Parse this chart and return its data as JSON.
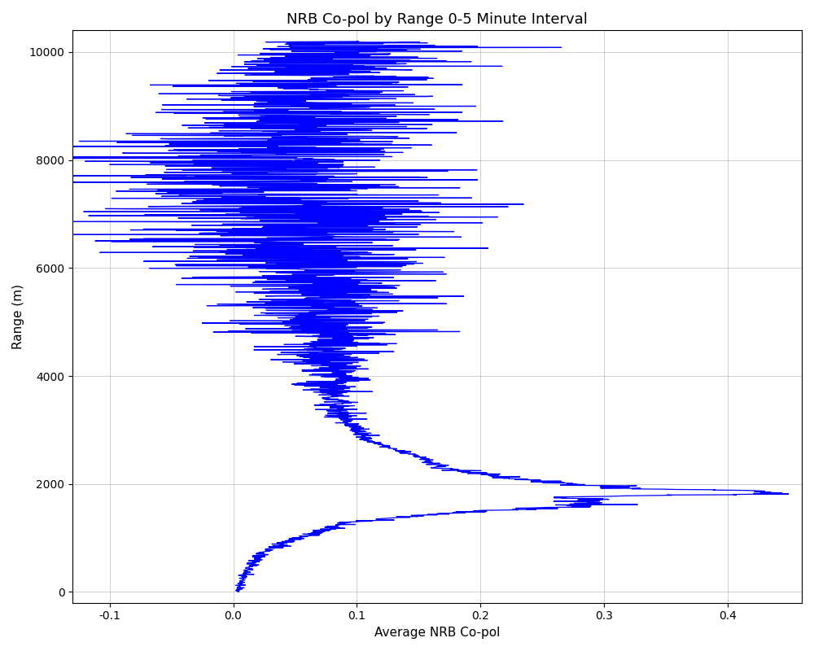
{
  "title": "NRB Co-pol by Range 0-5 Minute Interval",
  "xlabel": "Average NRB Co-pol",
  "ylabel": "Range (m)",
  "xlim": [
    -0.13,
    0.46
  ],
  "ylim": [
    -200,
    10400
  ],
  "xticks": [
    -0.1,
    0.0,
    0.1,
    0.2,
    0.3,
    0.4
  ],
  "yticks": [
    0,
    2000,
    4000,
    6000,
    8000,
    10000
  ],
  "line_color": "blue",
  "line_width": 0.9,
  "figsize": [
    10,
    8
  ],
  "dpi": 100
}
